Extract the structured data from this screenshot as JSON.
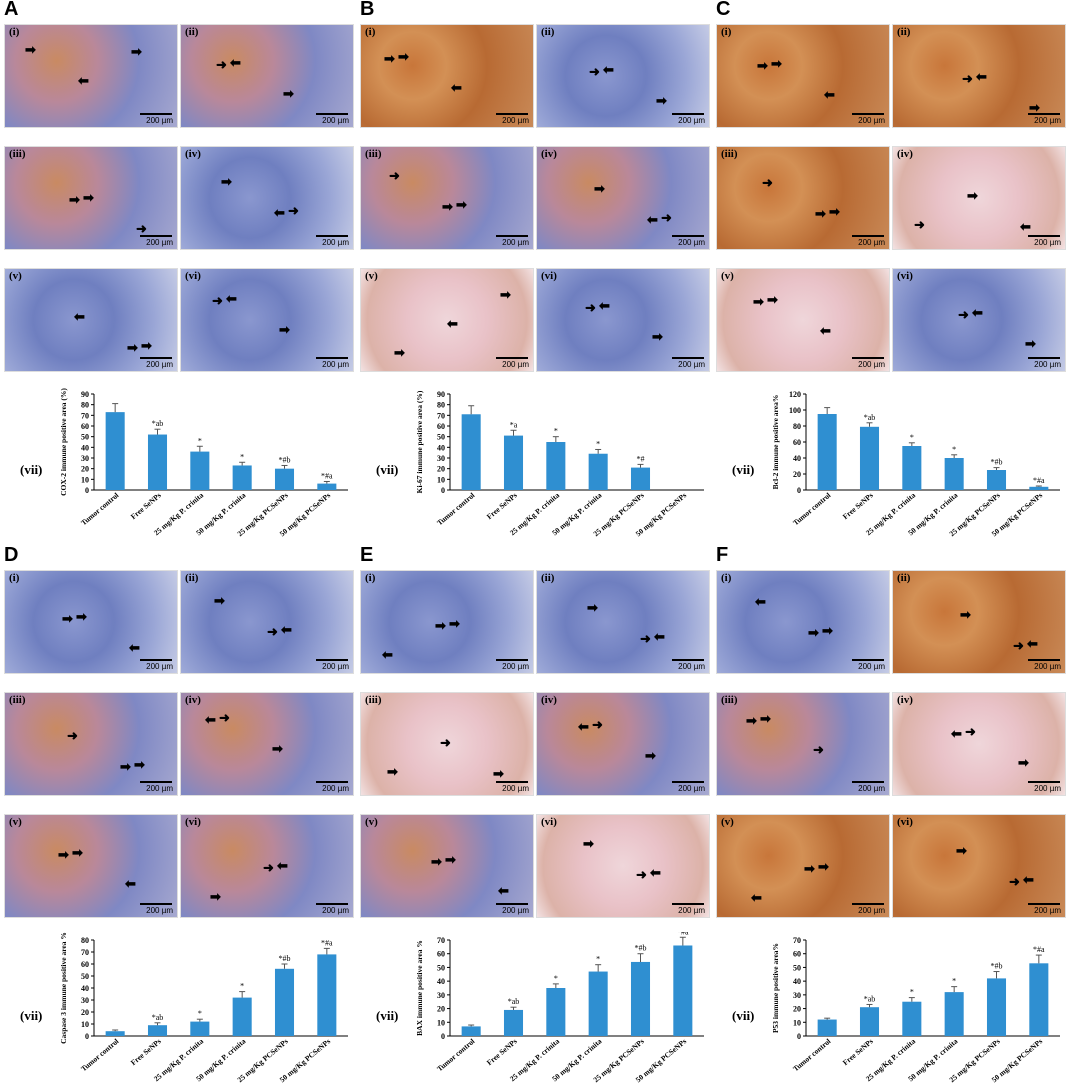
{
  "scale_bar": "200 µm",
  "sub_labels": [
    "(i)",
    "(ii)",
    "(iii)",
    "(iv)",
    "(v)",
    "(vi)"
  ],
  "vii_label": "(vii)",
  "categories": [
    "Tumor control",
    "Free SeNPs",
    "25 mg/Kg P. crinita",
    "50 mg/Kg P. crinita",
    "25 mg/Kg PCSeNPs",
    "50 mg/Kg PCSeNPs"
  ],
  "colors": {
    "bar": "#2f8fd1",
    "brown": "#b5652e",
    "blue": "#6f7fc0",
    "pink": "#e9c2c8"
  },
  "panels": [
    {
      "letter": "A",
      "tones": [
        "mix",
        "mix",
        "mix",
        "blue",
        "blue",
        "blue"
      ],
      "chart_data": {
        "type": "bar",
        "ylabel": "COX-2 immune positive area (%)",
        "ylim": [
          0,
          90
        ],
        "yticks": [
          0,
          10,
          20,
          30,
          40,
          50,
          60,
          70,
          80,
          90
        ],
        "values": [
          73,
          52,
          36,
          23,
          20,
          6
        ],
        "errors": [
          8,
          5,
          5,
          3,
          3,
          2
        ],
        "annotations": [
          "",
          "*ab",
          "*",
          "*",
          "*#b",
          "*#a"
        ]
      }
    },
    {
      "letter": "B",
      "tones": [
        "brown",
        "blue",
        "mix",
        "mix",
        "pink",
        "blue"
      ],
      "chart_data": {
        "type": "bar",
        "ylabel": "Ki-67 immune positive area (%)",
        "ylim": [
          0,
          90
        ],
        "yticks": [
          0,
          10,
          20,
          30,
          40,
          50,
          60,
          70,
          80,
          90
        ],
        "values": [
          71,
          51,
          45,
          34,
          21,
          0
        ],
        "errors": [
          8,
          5,
          5,
          4,
          3,
          0
        ],
        "annotations": [
          "",
          "*a",
          "*",
          "*",
          "*#",
          ""
        ]
      }
    },
    {
      "letter": "C",
      "tones": [
        "brown",
        "brown",
        "brown",
        "pink",
        "pink",
        "blue"
      ],
      "chart_data": {
        "type": "bar",
        "ylabel": "Bcl-2 immune positive area%",
        "ylim": [
          0,
          120
        ],
        "yticks": [
          0,
          20,
          40,
          60,
          80,
          100,
          120
        ],
        "values": [
          95,
          79,
          55,
          40,
          25,
          4
        ],
        "errors": [
          8,
          5,
          4,
          4,
          3,
          1
        ],
        "annotations": [
          "",
          "*ab",
          "*",
          "*",
          "*#b",
          "*#a"
        ]
      }
    },
    {
      "letter": "D",
      "tones": [
        "blue",
        "blue",
        "mix",
        "mix",
        "mix",
        "mix"
      ],
      "chart_data": {
        "type": "bar",
        "ylabel": "Caspase 3 immune positive area %",
        "ylim": [
          0,
          80
        ],
        "yticks": [
          0,
          10,
          20,
          30,
          40,
          50,
          60,
          70,
          80
        ],
        "values": [
          4,
          9,
          12,
          32,
          56,
          68
        ],
        "errors": [
          1,
          2,
          2,
          5,
          4,
          5
        ],
        "annotations": [
          "",
          "*ab",
          "*",
          "*",
          "*#b",
          "*#a"
        ]
      }
    },
    {
      "letter": "E",
      "tones": [
        "blue",
        "blue",
        "pink",
        "mix",
        "mix",
        "pink"
      ],
      "chart_data": {
        "type": "bar",
        "ylabel": "BAX immune positive area %",
        "ylim": [
          0,
          70
        ],
        "yticks": [
          0,
          10,
          20,
          30,
          40,
          50,
          60,
          70
        ],
        "values": [
          7,
          19,
          35,
          47,
          54,
          66
        ],
        "errors": [
          1,
          2,
          3,
          5,
          6,
          6
        ],
        "annotations": [
          "",
          "*ab",
          "*",
          "*",
          "*#b",
          "*#a"
        ]
      }
    },
    {
      "letter": "F",
      "tones": [
        "blue",
        "brown",
        "mix",
        "pink",
        "brown",
        "brown"
      ],
      "chart_data": {
        "type": "bar",
        "ylabel": "P53 immune positive area%",
        "ylim": [
          0,
          70
        ],
        "yticks": [
          0,
          10,
          20,
          30,
          40,
          50,
          60,
          70
        ],
        "values": [
          12,
          21,
          25,
          32,
          42,
          53
        ],
        "errors": [
          1,
          2,
          3,
          4,
          5,
          6
        ],
        "annotations": [
          "",
          "*ab",
          "*",
          "*",
          "*#b",
          "*#a"
        ]
      }
    }
  ]
}
